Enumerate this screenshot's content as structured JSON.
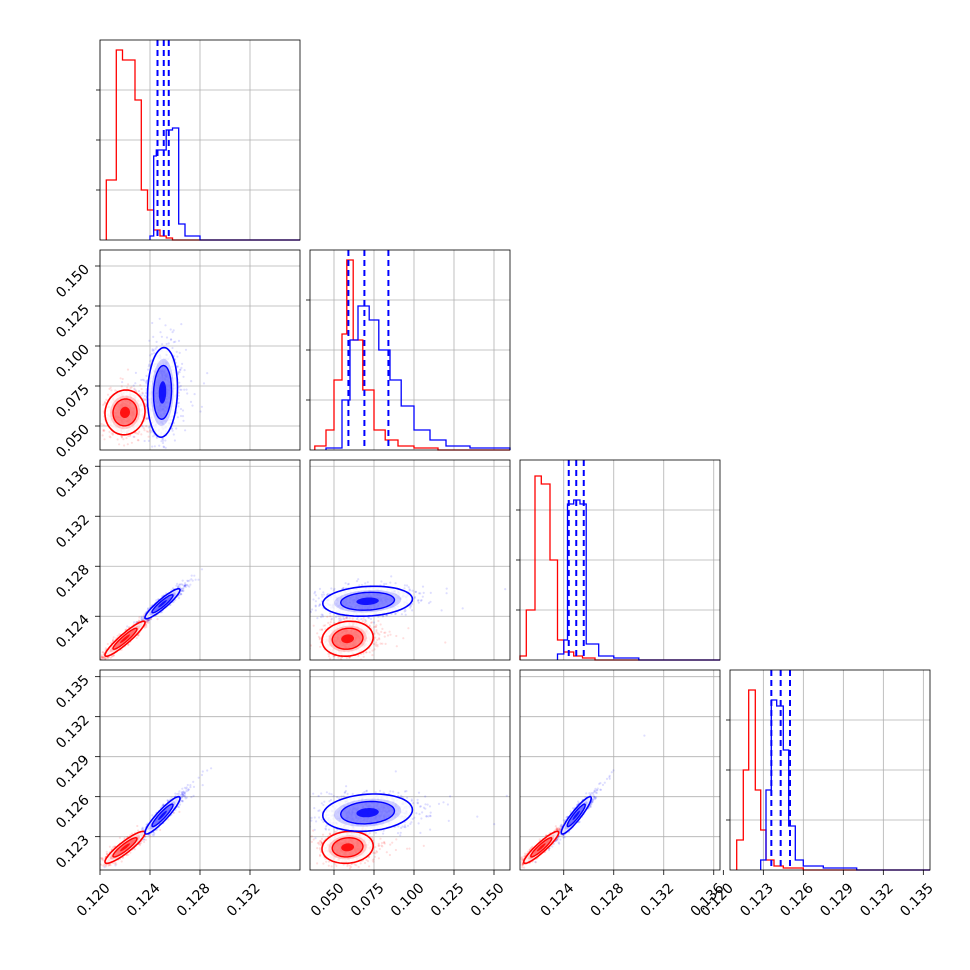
{
  "chart_data": {
    "type": "corner",
    "series": [
      {
        "name": "",
        "color": "#ff0000",
        "key": "red"
      },
      {
        "name": "",
        "color": "#0000ff",
        "key": "blue"
      }
    ],
    "params": [
      {
        "range": [
          0.12,
          0.136
        ],
        "ticks": [
          "0.120",
          "0.124",
          "0.128",
          "0.132"
        ],
        "show_x_ticks": true
      },
      {
        "range": [
          0.035,
          0.16
        ],
        "ticks": [
          "0.050",
          "0.075",
          "0.100",
          "0.125",
          "0.150"
        ],
        "show_x_ticks": true
      },
      {
        "range": [
          0.1205,
          0.1365
        ],
        "ticks": [
          "0.124",
          "0.128",
          "0.132",
          "0.136"
        ],
        "show_x_ticks": true
      },
      {
        "range": [
          0.1205,
          0.1355
        ],
        "ticks": [
          "0.120",
          "0.123",
          "0.126",
          "0.129",
          "0.132",
          "0.135"
        ],
        "show_x_ticks": true
      }
    ],
    "y_tick_labels": [
      null,
      [
        "0.050",
        "0.075",
        "0.100",
        "0.125",
        "0.150"
      ],
      [
        "0.124",
        "0.128",
        "0.132",
        "0.136"
      ],
      [
        "0.123",
        "0.126",
        "0.129",
        "0.132",
        "0.135"
      ]
    ],
    "histograms": [
      {
        "red": [
          0.3,
          0.95,
          0.9,
          0.9,
          0.7,
          0.25,
          0.15,
          0.05,
          0.02,
          0.01
        ],
        "red_bins": [
          0.1205,
          0.1213,
          0.1218,
          0.1223,
          0.1228,
          0.1233,
          0.1238,
          0.1243,
          0.1248,
          0.1253,
          0.1258
        ],
        "blue": [
          0.02,
          0.42,
          0.45,
          0.45,
          0.45,
          0.55,
          0.55,
          0.56,
          0.08,
          0.02
        ],
        "blue_bins": [
          0.124,
          0.1243,
          0.1245,
          0.1248,
          0.125,
          0.1253,
          0.1255,
          0.1258,
          0.1263,
          0.1268,
          0.128
        ],
        "blue_quantiles": [
          0.1246,
          0.1251,
          0.1255
        ],
        "yticks": [
          0.25,
          0.5,
          0.75
        ]
      },
      {
        "red": [
          0.02,
          0.1,
          0.35,
          0.58,
          0.95,
          0.55,
          0.3,
          0.1,
          0.05,
          0.02,
          0.01
        ],
        "red_bins": [
          0.038,
          0.045,
          0.05,
          0.055,
          0.058,
          0.062,
          0.068,
          0.075,
          0.082,
          0.09,
          0.1,
          0.115
        ],
        "blue": [
          0.01,
          0.25,
          0.55,
          0.72,
          0.65,
          0.5,
          0.35,
          0.22,
          0.1,
          0.05,
          0.02,
          0.01
        ],
        "blue_bins": [
          0.045,
          0.055,
          0.06,
          0.065,
          0.072,
          0.078,
          0.085,
          0.092,
          0.1,
          0.11,
          0.12,
          0.135,
          0.16
        ],
        "blue_quantiles": [
          0.059,
          0.069,
          0.084
        ],
        "yticks": [
          0.25,
          0.5,
          0.75
        ]
      },
      {
        "red": [
          0.02,
          0.25,
          0.92,
          0.88,
          0.5,
          0.1,
          0.04,
          0.02,
          0.01
        ],
        "red_bins": [
          0.1205,
          0.121,
          0.1217,
          0.1222,
          0.1229,
          0.1235,
          0.124,
          0.1248,
          0.1255,
          0.1265
        ],
        "blue": [
          0.03,
          0.1,
          0.78,
          0.8,
          0.78,
          0.08,
          0.02,
          0.01
        ],
        "blue_bins": [
          0.1235,
          0.124,
          0.1243,
          0.1248,
          0.1253,
          0.1258,
          0.1268,
          0.128,
          0.13
        ],
        "blue_quantiles": [
          0.1244,
          0.125,
          0.1256
        ],
        "yticks": [
          0.25,
          0.5,
          0.75
        ]
      },
      {
        "red": [
          0.15,
          0.5,
          0.9,
          0.4,
          0.2,
          0.05,
          0.02,
          0.01
        ],
        "red_bins": [
          0.121,
          0.1215,
          0.1219,
          0.1224,
          0.1228,
          0.1232,
          0.1238,
          0.1245,
          0.126
        ],
        "blue": [
          0.05,
          0.4,
          0.85,
          0.82,
          0.6,
          0.22,
          0.05,
          0.02,
          0.01
        ],
        "blue_bins": [
          0.1228,
          0.1232,
          0.1236,
          0.124,
          0.1245,
          0.1249,
          0.1254,
          0.126,
          0.1275,
          0.13
        ],
        "blue_quantiles": [
          0.1236,
          0.1243,
          0.125
        ],
        "yticks": [
          0.25,
          0.5,
          0.75
        ]
      }
    ],
    "pairs": [
      {
        "row": 1,
        "col": 0,
        "red": {
          "mean": [
            0.122,
            0.0585
          ],
          "sd": [
            0.0008,
            0.007
          ],
          "rho": 0.05
        },
        "blue": {
          "mean": [
            0.125,
            0.071
          ],
          "sd": [
            0.0006,
            0.014
          ],
          "rho": 0.1
        }
      },
      {
        "row": 2,
        "col": 0,
        "red": {
          "mean": [
            0.122,
            0.1222
          ],
          "sd": [
            0.0008,
            0.0007
          ],
          "rho": 0.93
        },
        "blue": {
          "mean": [
            0.125,
            0.125
          ],
          "sd": [
            0.0007,
            0.0006
          ],
          "rho": 0.92
        }
      },
      {
        "row": 2,
        "col": 1,
        "red": {
          "mean": [
            0.0585,
            0.1222
          ],
          "sd": [
            0.008,
            0.0007
          ],
          "rho": 0.1
        },
        "blue": {
          "mean": [
            0.071,
            0.1252
          ],
          "sd": [
            0.014,
            0.0006
          ],
          "rho": 0.15
        }
      },
      {
        "row": 3,
        "col": 0,
        "red": {
          "mean": [
            0.122,
            0.1222
          ],
          "sd": [
            0.0008,
            0.0006
          ],
          "rho": 0.9
        },
        "blue": {
          "mean": [
            0.125,
            0.1246
          ],
          "sd": [
            0.0007,
            0.0007
          ],
          "rho": 0.92
        }
      },
      {
        "row": 3,
        "col": 1,
        "red": {
          "mean": [
            0.0585,
            0.1222
          ],
          "sd": [
            0.008,
            0.0006
          ],
          "rho": 0.1
        },
        "blue": {
          "mean": [
            0.071,
            0.1248
          ],
          "sd": [
            0.014,
            0.0007
          ],
          "rho": 0.15
        }
      },
      {
        "row": 3,
        "col": 2,
        "red": {
          "mean": [
            0.1222,
            0.1222
          ],
          "sd": [
            0.0007,
            0.0006
          ],
          "rho": 0.92
        },
        "blue": {
          "mean": [
            0.125,
            0.1246
          ],
          "sd": [
            0.0006,
            0.0007
          ],
          "rho": 0.92
        }
      }
    ]
  }
}
